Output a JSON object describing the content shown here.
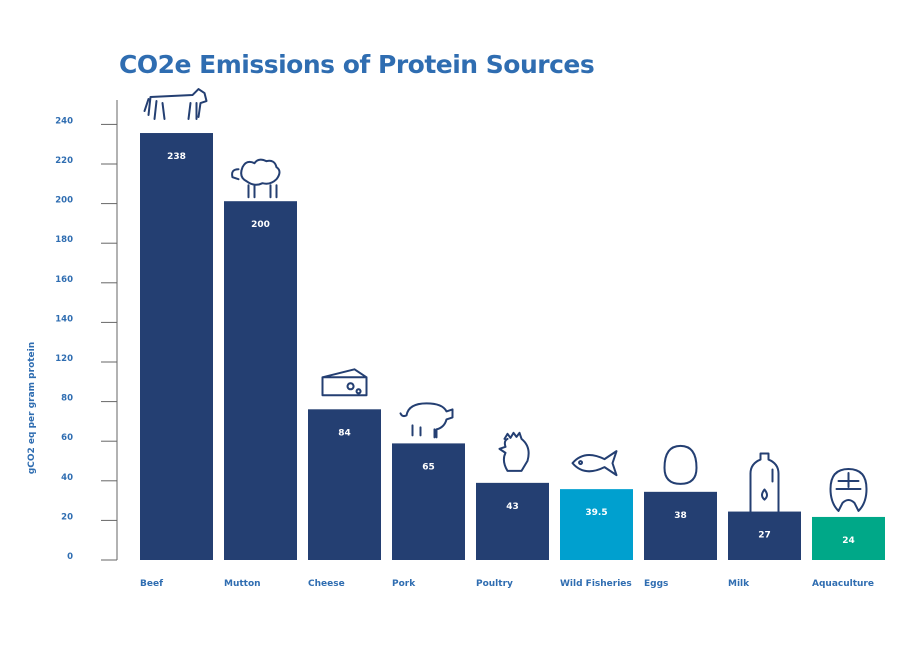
{
  "chart_data": {
    "type": "bar",
    "title": "CO2e Emissions of Protein Sources",
    "xlabel": "",
    "ylabel": "gCO2 eq per gram protein",
    "ylim": [
      0,
      240
    ],
    "y_tick_labels": [
      "0",
      "20",
      "40",
      "60",
      "80",
      "120",
      "140",
      "160",
      "180",
      "200",
      "220",
      "240"
    ],
    "grid": false,
    "categories": [
      "Beef",
      "Mutton",
      "Cheese",
      "Pork",
      "Poultry",
      "Wild Fisheries",
      "Eggs",
      "Milk",
      "Aquaculture"
    ],
    "values": [
      238,
      200,
      84,
      65,
      43,
      39.5,
      38,
      27,
      24
    ],
    "value_labels": [
      "238",
      "200",
      "84",
      "65",
      "43",
      "39.5",
      "38",
      "27",
      "24"
    ],
    "icons": [
      "cow-icon",
      "sheep-icon",
      "cheese-icon",
      "pig-icon",
      "chicken-icon",
      "fish-icon",
      "egg-icon",
      "milk-bottle-icon",
      "salmon-steak-icon"
    ],
    "bar_colors": [
      "#243f72",
      "#243f72",
      "#243f72",
      "#243f72",
      "#243f72",
      "#00a0cf",
      "#243f72",
      "#243f72",
      "#00a888"
    ],
    "label_color": "#2f6db1",
    "icon_color": "#243f72"
  }
}
